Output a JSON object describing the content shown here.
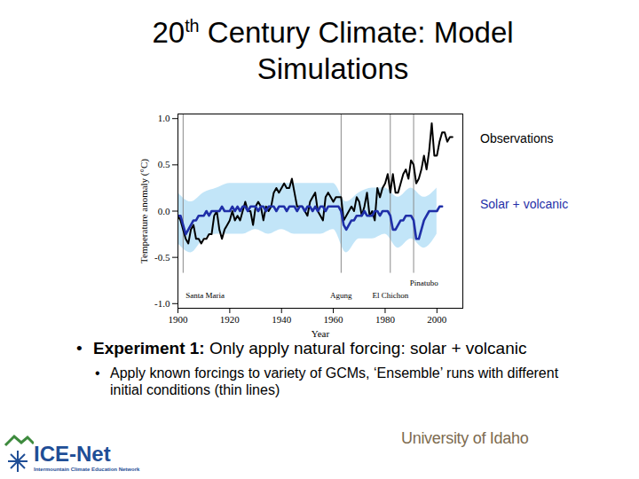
{
  "slide": {
    "title": "20th Century Climate: Model Simulations",
    "bullets": [
      {
        "lead": "Experiment 1:",
        "text": "Only apply natural forcing: solar + volcanic",
        "sub": [
          "Apply known forcings to variety of GCMs, ‘Ensemble’ runs with different initial conditions (thin lines)"
        ]
      }
    ],
    "logos": {
      "network": "ICE-Net",
      "network_full": "Intermountain Climate Education Network",
      "university": "University of Idaho"
    }
  },
  "chart_data": {
    "type": "line",
    "xlabel": "Year",
    "ylabel": "Temperature anomaly (°C)",
    "xlim": [
      1900,
      2010
    ],
    "xticks": [
      1900,
      1920,
      1940,
      1960,
      1980,
      2000
    ],
    "ylim": [
      -1.05,
      1.05
    ],
    "yticks": [
      {
        "value": -1,
        "label": "-1.0"
      },
      {
        "value": -0.5,
        "label": "-0.5"
      },
      {
        "value": 0,
        "label": "0.0"
      },
      {
        "value": 0.5,
        "label": "0.5"
      },
      {
        "value": 1,
        "label": "1.0"
      }
    ],
    "grid": false,
    "legend": "right",
    "x": [
      1900,
      1901,
      1902,
      1903,
      1904,
      1905,
      1906,
      1907,
      1908,
      1909,
      1910,
      1911,
      1912,
      1913,
      1914,
      1915,
      1916,
      1917,
      1918,
      1919,
      1920,
      1921,
      1922,
      1923,
      1924,
      1925,
      1926,
      1927,
      1928,
      1929,
      1930,
      1931,
      1932,
      1933,
      1934,
      1935,
      1936,
      1937,
      1938,
      1939,
      1940,
      1941,
      1942,
      1943,
      1944,
      1945,
      1946,
      1947,
      1948,
      1949,
      1950,
      1951,
      1952,
      1953,
      1954,
      1955,
      1956,
      1957,
      1958,
      1959,
      1960,
      1961,
      1962,
      1963,
      1964,
      1965,
      1966,
      1967,
      1968,
      1969,
      1970,
      1971,
      1972,
      1973,
      1974,
      1975,
      1976,
      1977,
      1978,
      1979,
      1980,
      1981,
      1982,
      1983,
      1984,
      1985,
      1986,
      1987,
      1988,
      1989,
      1990,
      1991,
      1992,
      1993,
      1994,
      1995,
      1996,
      1997,
      1998,
      1999,
      2000,
      2001,
      2002,
      2003,
      2004,
      2005,
      2006
    ],
    "series": [
      {
        "name": "Observations",
        "color": "#000000",
        "values": [
          -0.05,
          -0.1,
          -0.2,
          -0.3,
          -0.35,
          -0.2,
          -0.15,
          -0.3,
          -0.3,
          -0.35,
          -0.3,
          -0.3,
          -0.25,
          -0.25,
          -0.05,
          0.0,
          -0.2,
          -0.3,
          -0.2,
          -0.15,
          -0.1,
          0.0,
          -0.1,
          -0.05,
          -0.1,
          0.0,
          0.1,
          0.0,
          0.0,
          -0.15,
          0.05,
          0.1,
          0.05,
          -0.1,
          0.05,
          0.0,
          0.05,
          0.2,
          0.25,
          0.2,
          0.25,
          0.3,
          0.25,
          0.25,
          0.35,
          0.2,
          0.05,
          0.05,
          0.05,
          0.0,
          -0.05,
          0.1,
          0.15,
          0.2,
          0.0,
          -0.05,
          -0.1,
          0.15,
          0.2,
          0.15,
          0.1,
          0.15,
          0.15,
          0.15,
          -0.1,
          -0.05,
          0.0,
          0.05,
          0.0,
          0.15,
          0.1,
          -0.05,
          0.05,
          0.2,
          -0.05,
          0.0,
          -0.1,
          0.25,
          0.15,
          0.25,
          0.3,
          0.4,
          0.2,
          0.4,
          0.2,
          0.2,
          0.3,
          0.4,
          0.45,
          0.35,
          0.55,
          0.5,
          0.3,
          0.35,
          0.45,
          0.6,
          0.45,
          0.65,
          0.95,
          0.6,
          0.6,
          0.75,
          0.85,
          0.85,
          0.75,
          0.8,
          0.8
        ]
      },
      {
        "name": "Solar + volcanic",
        "color": "#1f2fa8",
        "values": [
          -0.05,
          -0.05,
          -0.15,
          -0.25,
          -0.2,
          -0.15,
          -0.1,
          -0.1,
          -0.05,
          -0.05,
          -0.05,
          0.0,
          -0.05,
          0.0,
          0.0,
          0.0,
          0.0,
          0.05,
          0.0,
          0.0,
          0.0,
          0.05,
          0.0,
          0.05,
          0.0,
          0.05,
          0.05,
          0.0,
          0.05,
          0.05,
          0.05,
          0.0,
          0.05,
          0.05,
          0.0,
          0.05,
          0.05,
          0.05,
          0.0,
          0.05,
          0.05,
          0.05,
          0.0,
          0.05,
          0.05,
          0.05,
          0.0,
          0.05,
          0.05,
          0.0,
          0.05,
          0.05,
          0.0,
          0.05,
          0.0,
          0.05,
          0.05,
          0.0,
          0.05,
          0.05,
          0.05,
          0.05,
          0.05,
          0.0,
          -0.15,
          -0.2,
          -0.15,
          -0.1,
          -0.1,
          -0.05,
          -0.05,
          -0.05,
          0.0,
          -0.05,
          -0.05,
          -0.05,
          0.0,
          0.0,
          -0.05,
          0.0,
          0.0,
          0.0,
          -0.05,
          -0.2,
          -0.2,
          -0.15,
          -0.1,
          -0.1,
          -0.05,
          -0.05,
          -0.05,
          -0.1,
          -0.3,
          -0.3,
          -0.2,
          -0.1,
          -0.05,
          0.0,
          0.0,
          0.0,
          0.0,
          0.05,
          0.05,
          null,
          null,
          null,
          null
        ]
      }
    ],
    "ensemble": {
      "color": "#8fd0f2",
      "x": [
        1900,
        1905,
        1910,
        1915,
        1920,
        1925,
        1930,
        1935,
        1940,
        1945,
        1950,
        1955,
        1960,
        1965,
        1970,
        1975,
        1980,
        1985,
        1990,
        1995,
        2000
      ],
      "lower": [
        -0.35,
        -0.45,
        -0.3,
        -0.25,
        -0.25,
        -0.25,
        -0.2,
        -0.25,
        -0.2,
        -0.25,
        -0.25,
        -0.25,
        -0.2,
        -0.45,
        -0.3,
        -0.3,
        -0.25,
        -0.4,
        -0.3,
        -0.4,
        -0.25
      ],
      "upper": [
        0.2,
        0.1,
        0.2,
        0.25,
        0.3,
        0.3,
        0.3,
        0.3,
        0.3,
        0.3,
        0.3,
        0.3,
        0.3,
        0.1,
        0.2,
        0.25,
        0.25,
        0.15,
        0.25,
        0.15,
        0.25
      ]
    },
    "annotations": [
      {
        "text": "Santa Maria",
        "x": 1902
      },
      {
        "text": "Agung",
        "x": 1963
      },
      {
        "text": "El Chichon",
        "x": 1982
      },
      {
        "text": "Pinatubo",
        "x": 1991
      }
    ]
  }
}
